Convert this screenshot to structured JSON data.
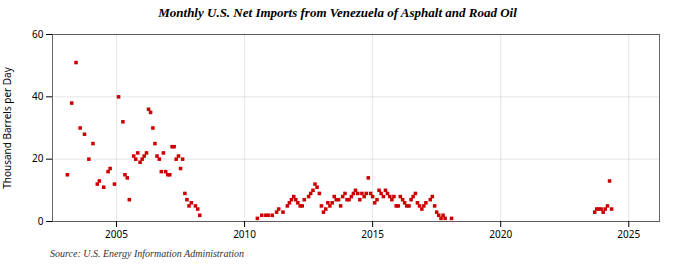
{
  "chart_data": {
    "type": "scatter",
    "title": "Monthly U.S. Net Imports from Venezuela of Asphalt and Road Oil",
    "ylabel": "Thousand Barrels per Day",
    "annotations": [
      "Source: U.S. Energy Information Administration"
    ],
    "color": "#cc0000",
    "marker": "square",
    "grid": true,
    "xlim": [
      2002.5,
      2026.2
    ],
    "xticks": [
      2005,
      2010,
      2015,
      2020,
      2025
    ],
    "ylim": [
      0,
      60
    ],
    "yticks": [
      0,
      20,
      40,
      60
    ],
    "x": [
      2003.08,
      2003.25,
      2003.42,
      2003.58,
      2003.75,
      2003.92,
      2004.08,
      2004.25,
      2004.33,
      2004.5,
      2004.67,
      2004.75,
      2004.92,
      2005.08,
      2005.25,
      2005.33,
      2005.42,
      2005.5,
      2005.67,
      2005.75,
      2005.83,
      2005.92,
      2006.0,
      2006.08,
      2006.17,
      2006.25,
      2006.33,
      2006.42,
      2006.5,
      2006.58,
      2006.67,
      2006.75,
      2006.83,
      2006.92,
      2007.0,
      2007.08,
      2007.17,
      2007.25,
      2007.33,
      2007.42,
      2007.5,
      2007.58,
      2007.67,
      2007.75,
      2007.83,
      2007.92,
      2008.08,
      2008.17,
      2008.25,
      2010.5,
      2010.67,
      2010.83,
      2010.92,
      2011.08,
      2011.25,
      2011.33,
      2011.5,
      2011.67,
      2011.75,
      2011.83,
      2011.92,
      2012.0,
      2012.08,
      2012.17,
      2012.25,
      2012.33,
      2012.5,
      2012.58,
      2012.67,
      2012.75,
      2012.83,
      2012.92,
      2013.0,
      2013.08,
      2013.17,
      2013.25,
      2013.33,
      2013.42,
      2013.5,
      2013.58,
      2013.67,
      2013.75,
      2013.83,
      2013.92,
      2014.0,
      2014.08,
      2014.17,
      2014.25,
      2014.33,
      2014.42,
      2014.5,
      2014.58,
      2014.67,
      2014.75,
      2014.83,
      2014.92,
      2015.0,
      2015.08,
      2015.17,
      2015.25,
      2015.33,
      2015.42,
      2015.5,
      2015.58,
      2015.67,
      2015.75,
      2015.83,
      2015.92,
      2016.0,
      2016.08,
      2016.17,
      2016.25,
      2016.33,
      2016.42,
      2016.5,
      2016.58,
      2016.67,
      2016.75,
      2016.83,
      2016.92,
      2017.0,
      2017.08,
      2017.25,
      2017.33,
      2017.42,
      2017.5,
      2017.58,
      2017.67,
      2017.75,
      2017.83,
      2018.08,
      2023.67,
      2023.75,
      2023.83,
      2023.92,
      2024.0,
      2024.08,
      2024.17,
      2024.25,
      2024.33
    ],
    "values": [
      15,
      38,
      51,
      30,
      28,
      20,
      25,
      12,
      13,
      11,
      16,
      17,
      12,
      40,
      32,
      15,
      14,
      7,
      21,
      20,
      22,
      19,
      20,
      21,
      22,
      36,
      35,
      30,
      25,
      21,
      20,
      16,
      22,
      16,
      15,
      15,
      24,
      24,
      20,
      21,
      17,
      20,
      9,
      7,
      5,
      6,
      5,
      4,
      2,
      1,
      2,
      2,
      2,
      2,
      3,
      4,
      3,
      5,
      6,
      7,
      8,
      7,
      6,
      5,
      5,
      7,
      8,
      9,
      10,
      12,
      11,
      9,
      5,
      3,
      4,
      6,
      5,
      6,
      8,
      7,
      7,
      5,
      8,
      9,
      7,
      7,
      8,
      9,
      10,
      9,
      7,
      9,
      8,
      9,
      14,
      9,
      8,
      6,
      7,
      10,
      9,
      8,
      10,
      9,
      8,
      7,
      8,
      5,
      5,
      8,
      7,
      6,
      5,
      5,
      7,
      8,
      9,
      6,
      5,
      4,
      5,
      6,
      7,
      8,
      5,
      3,
      2,
      1,
      2,
      1,
      1,
      3,
      4,
      4,
      4,
      3,
      4,
      5,
      13,
      4
    ]
  }
}
